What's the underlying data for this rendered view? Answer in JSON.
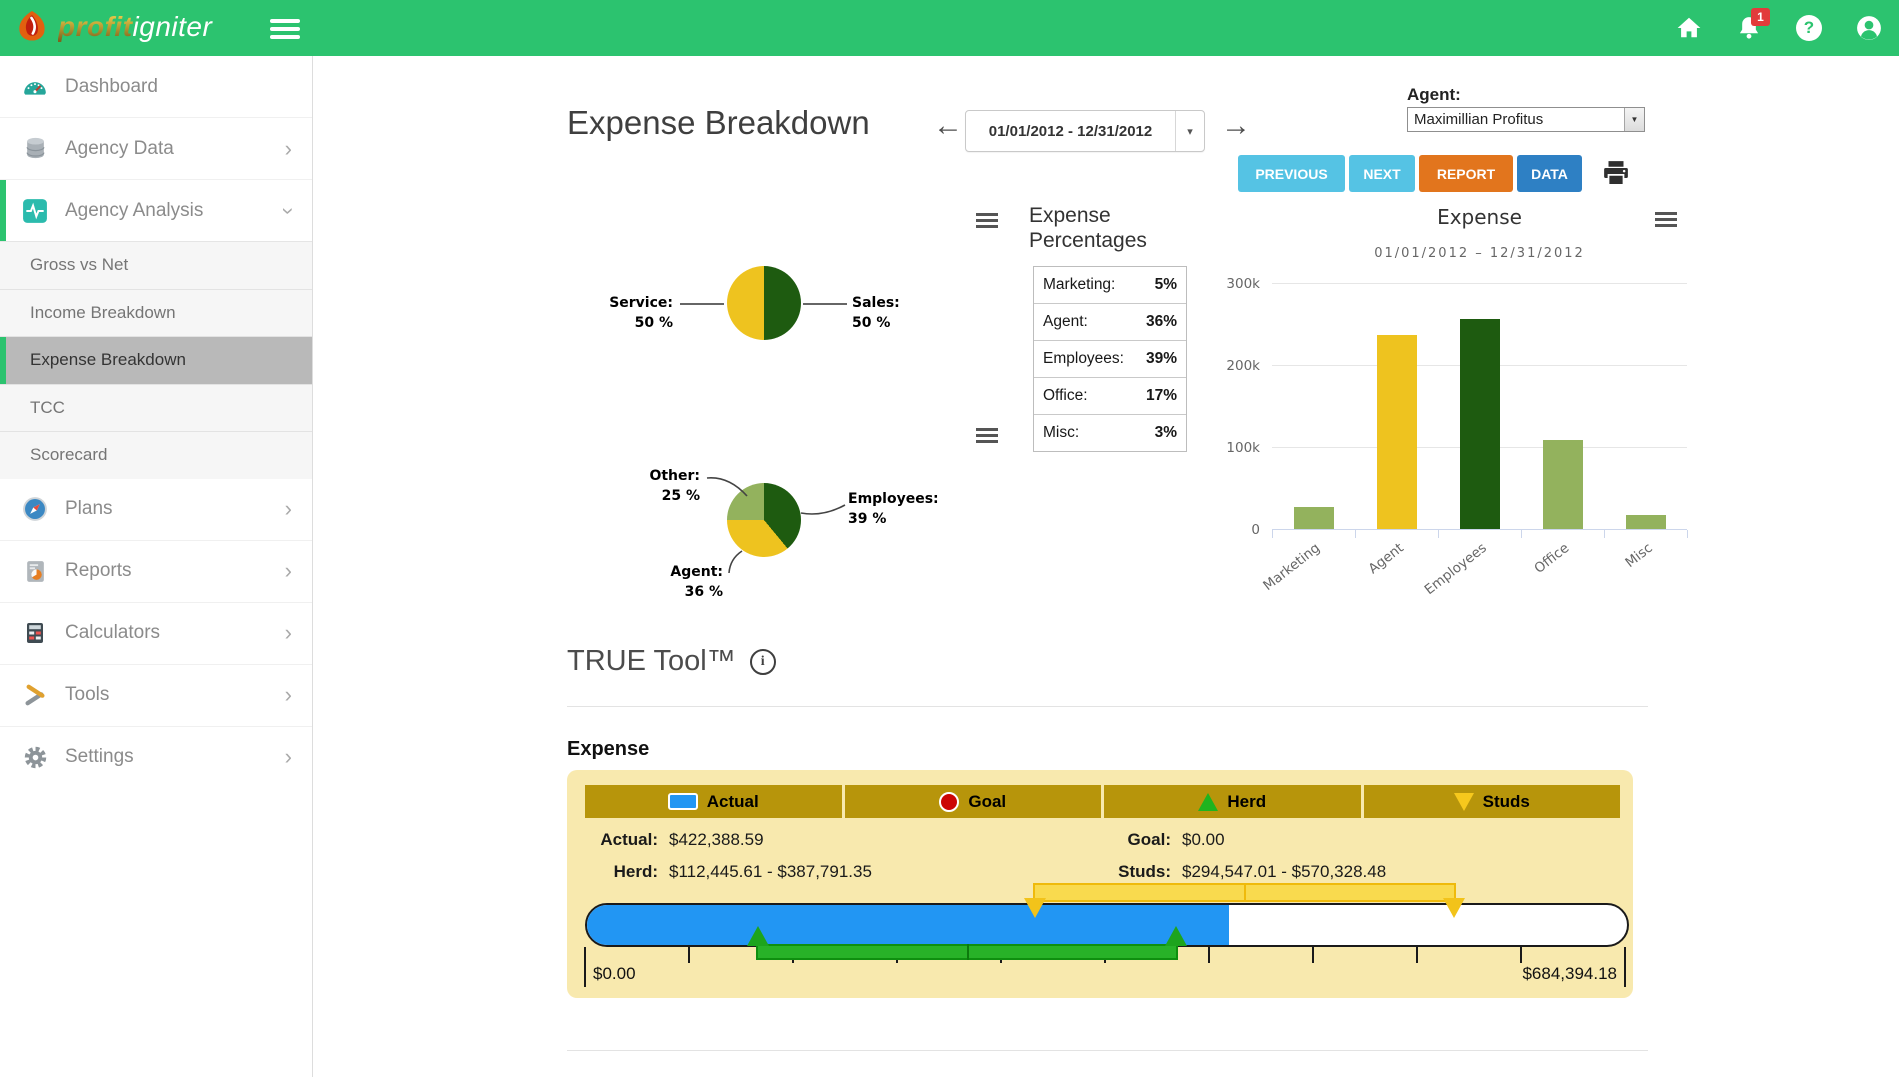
{
  "header": {
    "brand_profit": "profit",
    "brand_igniter": "igniter",
    "notification_count": "1"
  },
  "icons": {
    "back_arrow": "←",
    "forward_arrow": "→",
    "dropdown_caret": "▾",
    "select_caret": "▼",
    "chevron_right": "›",
    "info": "i",
    "help": "?"
  },
  "sidebar": {
    "items": [
      {
        "label": "Dashboard",
        "icon": "gauge-icon"
      },
      {
        "label": "Agency Data",
        "icon": "database-icon"
      },
      {
        "label": "Agency Analysis",
        "icon": "pulse-icon",
        "expanded": true,
        "active": true
      },
      {
        "label": "Plans",
        "icon": "compass-icon"
      },
      {
        "label": "Reports",
        "icon": "report-icon"
      },
      {
        "label": "Calculators",
        "icon": "calculator-icon"
      },
      {
        "label": "Tools",
        "icon": "tools-icon"
      },
      {
        "label": "Settings",
        "icon": "gear-icon"
      }
    ],
    "analysis_submenu": [
      "Gross vs Net",
      "Income Breakdown",
      "Expense Breakdown",
      "TCC",
      "Scorecard"
    ],
    "selected_submenu": "Expense Breakdown"
  },
  "toolbar": {
    "page_title": "Expense Breakdown",
    "date_range": "01/01/2012 - 12/31/2012",
    "agent_label": "Agent:",
    "agent_value": "Maximillian Profitus",
    "previous_label": "PREVIOUS",
    "next_label": "NEXT",
    "report_label": "REPORT",
    "data_label": "DATA"
  },
  "expense_percentages": {
    "title": "Expense Percentages",
    "rows": [
      {
        "label": "Marketing:",
        "value": "5%"
      },
      {
        "label": "Agent:",
        "value": "36%"
      },
      {
        "label": "Employees:",
        "value": "39%"
      },
      {
        "label": "Office:",
        "value": "17%"
      },
      {
        "label": "Misc:",
        "value": "3%"
      }
    ]
  },
  "chart_data": [
    {
      "type": "pie",
      "name": "sales-service-split",
      "slices": [
        {
          "label": "Sales",
          "display": "Sales:",
          "value": 50,
          "pct_text": "50 %",
          "color": "#1e5b10"
        },
        {
          "label": "Service",
          "display": "Service:",
          "value": 50,
          "pct_text": "50 %",
          "color": "#eec31f"
        }
      ]
    },
    {
      "type": "pie",
      "name": "expense-split",
      "slices": [
        {
          "label": "Employees",
          "display": "Employees:",
          "value": 39,
          "pct_text": "39 %",
          "color": "#1e5b10"
        },
        {
          "label": "Agent",
          "display": "Agent:",
          "value": 36,
          "pct_text": "36 %",
          "color": "#eec31f"
        },
        {
          "label": "Other",
          "display": "Other:",
          "value": 25,
          "pct_text": "25 %",
          "color": "#93b25d"
        }
      ]
    },
    {
      "type": "bar",
      "title": "Expense",
      "subtitle": "01/01/2012 – 12/31/2012",
      "categories": [
        "Marketing",
        "Agent",
        "Employees",
        "Office",
        "Misc"
      ],
      "values": [
        27000,
        237000,
        256000,
        109000,
        17000
      ],
      "colors": [
        "#93b25d",
        "#eec31f",
        "#1e5b10",
        "#93b25d",
        "#93b25d"
      ],
      "ylim": [
        0,
        300000
      ],
      "ytick_values": [
        0,
        100000,
        200000,
        300000
      ],
      "ytick_labels": [
        "0",
        "100k",
        "200k",
        "300k"
      ],
      "grid": true,
      "legend": false
    }
  ],
  "true_tool": {
    "title": "TRUE Tool™"
  },
  "gauge": {
    "section_title": "Expense",
    "legend": [
      {
        "label": "Actual",
        "marker": "square",
        "color": "#2296f3"
      },
      {
        "label": "Goal",
        "marker": "circle",
        "color": "#cc0605"
      },
      {
        "label": "Herd",
        "marker": "triangle-up",
        "color": "#1fb41f"
      },
      {
        "label": "Studs",
        "marker": "triangle-down",
        "color": "#f6c81d"
      }
    ],
    "actual_label": "Actual:",
    "actual_value": "$422,388.59",
    "goal_label": "Goal:",
    "goal_value": "$0.00",
    "herd_label": "Herd:",
    "herd_value": "$112,445.61 - $387,791.35",
    "studs_label": "Studs:",
    "studs_value": "$294,547.01 - $570,328.48",
    "min_label": "$0.00",
    "max_label": "$684,394.18",
    "min": 0,
    "max": 684394.18,
    "actual": 422388.59,
    "goal": 0,
    "herd_range": [
      112445.61,
      387791.35
    ],
    "studs_range": [
      294547.01,
      570328.48
    ]
  },
  "colors": {
    "header_green": "#2cc36f",
    "accent_teal": "#2bbbad",
    "btn_light_blue": "#55c3e4",
    "btn_orange": "#e2751d",
    "btn_blue": "#2e80c4",
    "pie_dark_green": "#1e5b10",
    "pie_yellow": "#eec31f",
    "pie_light_green": "#93b25d",
    "gauge_blue": "#2296f3",
    "goal_red": "#cc0605",
    "herd_green": "#1fb41f",
    "studs_yellow": "#f6c81d",
    "panel_yellow": "#f8e9ae",
    "legend_gold": "#b7950b"
  }
}
